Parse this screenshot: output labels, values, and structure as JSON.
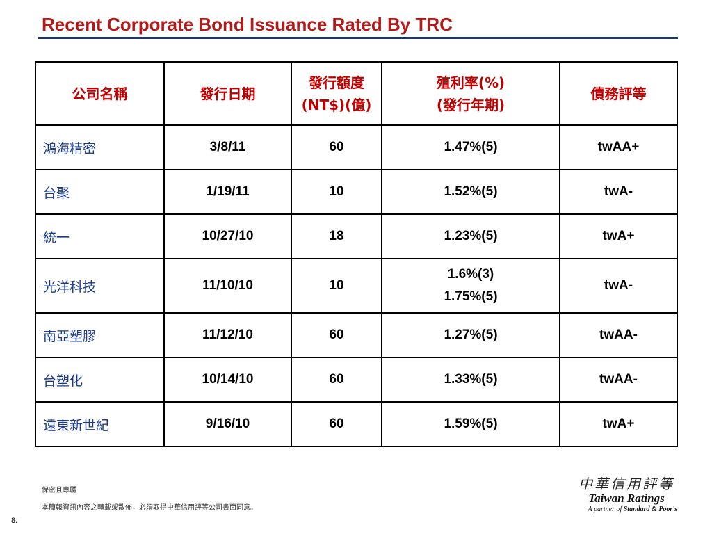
{
  "title": "Recent Corporate Bond Issuance Rated By TRC",
  "table": {
    "headers": [
      [
        "公司名稱"
      ],
      [
        "發行日期"
      ],
      [
        "發行額度",
        "(NT$)(億)"
      ],
      [
        "殖利率(%)",
        "(發行年期)"
      ],
      [
        "債務評等"
      ]
    ],
    "rows": [
      {
        "name": "鴻海精密",
        "date": "3/8/11",
        "amount": "60",
        "yield": [
          "1.47%(5)"
        ],
        "rating": "twAA+"
      },
      {
        "name": "台聚",
        "date": "1/19/11",
        "amount": "10",
        "yield": [
          "1.52%(5)"
        ],
        "rating": "twA-"
      },
      {
        "name": "統一",
        "date": "10/27/10",
        "amount": "18",
        "yield": [
          "1.23%(5)"
        ],
        "rating": "twA+"
      },
      {
        "name": "光洋科技",
        "date": "11/10/10",
        "amount": "10",
        "yield": [
          "1.6%(3)",
          "1.75%(5)"
        ],
        "rating": "twA-"
      },
      {
        "name": "南亞塑膠",
        "date": "11/12/10",
        "amount": "60",
        "yield": [
          "1.27%(5)"
        ],
        "rating": "twAA-"
      },
      {
        "name": "台塑化",
        "date": "10/14/10",
        "amount": "60",
        "yield": [
          "1.33%(5)"
        ],
        "rating": "twAA-"
      },
      {
        "name": "遠東新世紀",
        "date": "9/16/10",
        "amount": "60",
        "yield": [
          "1.59%(5)"
        ],
        "rating": "twA+"
      }
    ]
  },
  "footer": {
    "label": "保密且專屬",
    "note": "本簡報資訊內容之轉載或散佈，必須取得中華信用評等公司書面同意。",
    "page": "8."
  },
  "logo": {
    "cn": "中華信用評等",
    "en": "Taiwan Ratings",
    "partner_prefix": "A partner of ",
    "partner_name": "Standard & Poor's"
  }
}
